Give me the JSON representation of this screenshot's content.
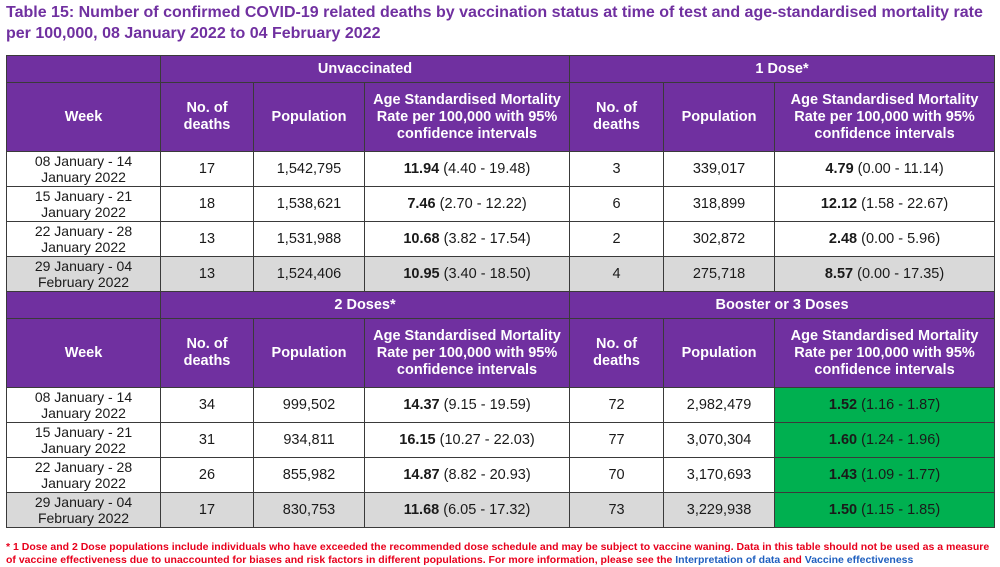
{
  "title": "Table 15: Number of confirmed COVID-19 related deaths by vaccination status at time of test and age-standardised mortality rate per 100,000, 08 January 2022 to 04 February 2022",
  "columns": {
    "week": "Week",
    "deaths": "No. of deaths",
    "population": "Population",
    "rate_unvax": "Age Standardised Mortality Rate per 100,000 with 95% confidence intervals",
    "rate_vax": "Age Standardised Mortality Rate per 100,000 with 95% confidence intervals"
  },
  "sections": [
    {
      "left_group": "Unvaccinated",
      "right_group": "1 Dose*",
      "rows": [
        {
          "week": "08 January - 14 January 2022",
          "l_deaths": "17",
          "l_pop": "1,542,795",
          "l_rate": "11.94",
          "l_ci": "(4.40 - 19.48)",
          "r_deaths": "3",
          "r_pop": "339,017",
          "r_rate": "4.79",
          "r_ci": "(0.00 - 11.14)"
        },
        {
          "week": "15 January - 21 January 2022",
          "l_deaths": "18",
          "l_pop": "1,538,621",
          "l_rate": "7.46",
          "l_ci": "(2.70 - 12.22)",
          "r_deaths": "6",
          "r_pop": "318,899",
          "r_rate": "12.12",
          "r_ci": "(1.58 - 22.67)"
        },
        {
          "week": "22 January - 28 January 2022",
          "l_deaths": "13",
          "l_pop": "1,531,988",
          "l_rate": "10.68",
          "l_ci": "(3.82 - 17.54)",
          "r_deaths": "2",
          "r_pop": "302,872",
          "r_rate": "2.48",
          "r_ci": "(0.00 - 5.96)"
        },
        {
          "week": "29 January - 04 February 2022",
          "l_deaths": "13",
          "l_pop": "1,524,406",
          "l_rate": "10.95",
          "l_ci": "(3.40 - 18.50)",
          "r_deaths": "4",
          "r_pop": "275,718",
          "r_rate": "8.57",
          "r_ci": "(0.00 - 17.35)"
        }
      ]
    },
    {
      "left_group": "2 Doses*",
      "right_group": "Booster or 3 Doses",
      "rows": [
        {
          "week": "08 January - 14 January 2022",
          "l_deaths": "34",
          "l_pop": "999,502",
          "l_rate": "14.37",
          "l_ci": "(9.15 - 19.59)",
          "r_deaths": "72",
          "r_pop": "2,982,479",
          "r_rate": "1.52",
          "r_ci": "(1.16 - 1.87)"
        },
        {
          "week": "15 January - 21 January 2022",
          "l_deaths": "31",
          "l_pop": "934,811",
          "l_rate": "16.15",
          "l_ci": "(10.27 - 22.03)",
          "r_deaths": "77",
          "r_pop": "3,070,304",
          "r_rate": "1.60",
          "r_ci": "(1.24 - 1.96)"
        },
        {
          "week": "22 January - 28 January 2022",
          "l_deaths": "26",
          "l_pop": "855,982",
          "l_rate": "14.87",
          "l_ci": "(8.82 - 20.93)",
          "r_deaths": "70",
          "r_pop": "3,170,693",
          "r_rate": "1.43",
          "r_ci": "(1.09 - 1.77)"
        },
        {
          "week": "29 January - 04 February 2022",
          "l_deaths": "17",
          "l_pop": "830,753",
          "l_rate": "11.68",
          "l_ci": "(6.05 - 17.32)",
          "r_deaths": "73",
          "r_pop": "3,229,938",
          "r_rate": "1.50",
          "r_ci": "(1.15 - 1.85)"
        }
      ]
    }
  ],
  "footnote": {
    "text": "* 1 Dose and 2 Dose populations include individuals who have exceeded the recommended dose schedule and may be subject to vaccine waning. Data in this table should not be used as a measure of vaccine effectiveness due to unaccounted for biases and risk factors in different populations. For more information, please see the ",
    "link1": "Interpretation of data",
    "and": " and ",
    "link2": "Vaccine effectiveness"
  },
  "colors": {
    "header_purple": "#7030a0",
    "shaded_row": "#d9d9d9",
    "highlight_green": "#00b050",
    "footnote_red": "#e8001c",
    "link_blue": "#1f5fbf"
  }
}
